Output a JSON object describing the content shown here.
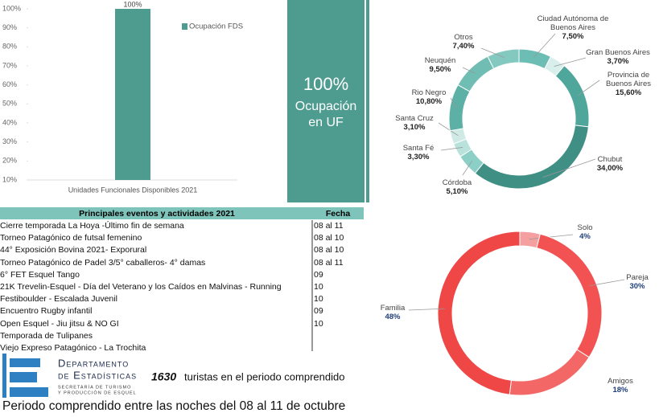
{
  "chart_data": [
    {
      "type": "bar",
      "categories": [
        "Unidades Funcionales Disponibles 2021"
      ],
      "series": [
        {
          "name": "Ocupación FDS",
          "color": "#4e9b8f",
          "values": [
            100
          ],
          "value_labels": [
            "100%"
          ]
        }
      ],
      "ylim": [
        10,
        100
      ],
      "yticks": [
        {
          "value": 10,
          "label": "10%"
        },
        {
          "value": 20,
          "label": "20%"
        },
        {
          "value": 30,
          "label": "30%"
        },
        {
          "value": 40,
          "label": "40%"
        },
        {
          "value": 50,
          "label": "50%"
        },
        {
          "value": 60,
          "label": "60%"
        },
        {
          "value": 70,
          "label": "70%"
        },
        {
          "value": 80,
          "label": "80%"
        },
        {
          "value": 90,
          "label": "90%"
        },
        {
          "value": 100,
          "label": "100%"
        }
      ],
      "grid": false,
      "legend": "top-right"
    },
    {
      "type": "donut",
      "categories": [
        "Ciudad Autónoma de Buenos Aires",
        "Gran Buenos Aires",
        "Provincia de Buenos Aires",
        "Chubut",
        "Córdoba",
        "Santa Fé",
        "Santa Cruz",
        "Rio Negro",
        "Neuquén",
        "Otros"
      ],
      "values": [
        7.5,
        3.7,
        15.6,
        34,
        5.1,
        3.3,
        3.1,
        10.8,
        9.5,
        7.4
      ],
      "value_labels": [
        "7,50%",
        "3,70%",
        "15,60%",
        "34,00%",
        "5,10%",
        "3,30%",
        "3,10%",
        "10,80%",
        "9,50%",
        "7,40%"
      ],
      "colors": [
        "#6cbdb3",
        "#d9efeb",
        "#4fa79c",
        "#3f8f85",
        "#8ccfc6",
        "#b9e2dc",
        "#cfe9e4",
        "#5cb0a6",
        "#6fbdb3",
        "#84c9c0"
      ]
    },
    {
      "type": "donut",
      "categories": [
        "Solo",
        "Pareja",
        "Amigos",
        "Familia"
      ],
      "values": [
        4,
        30,
        18,
        48
      ],
      "value_labels": [
        "4%",
        "30%",
        "18%",
        "48%"
      ],
      "colors": [
        "#f5a0a0",
        "#f25252",
        "#f36767",
        "#ef4646"
      ]
    }
  ],
  "kpi": {
    "value": "100%",
    "lines": [
      "Ocupación",
      "en UF"
    ]
  },
  "events_table": {
    "columns": [
      "Principales eventos y actividades 2021",
      "Fecha"
    ],
    "rows": [
      {
        "event": "Cierre temporada La Hoya -Último fin de semana",
        "date": "08 al 11"
      },
      {
        "event": "Torneo Patagónico de futsal femenino",
        "date": "08 al 10"
      },
      {
        "event": "44° Exposición Bovina 2021- Exporural",
        "date": "08 al 10"
      },
      {
        "event": "Torneo Patagónico de Padel 3/5° caballeros- 4° damas",
        "date": "08 al 11"
      },
      {
        "event": "6° FET Esquel Tango",
        "date": "09"
      },
      {
        "event": "21K Trevelin-Esquel - Día del Veterano y los Caídos en Malvinas - Running",
        "date": "10"
      },
      {
        "event": "Festiboulder - Escalada Juvenil",
        "date": "10"
      },
      {
        "event": "Encuentro Rugby infantil",
        "date": "09"
      },
      {
        "event": "Open Esquel - Jiu jitsu & NO GI",
        "date": "10"
      },
      {
        "event": "Temporada de Tulipanes"
      },
      {
        "event": "Viejo Expreso Patagónico - La Trochita"
      }
    ]
  },
  "logo": {
    "line1": "Departamento",
    "line2": "de Estadísticas",
    "line3": "Secretaría de Turismo",
    "line4": "y Producción de Esquel"
  },
  "summary": {
    "count": 1630,
    "text": "turistas en el periodo comprendido"
  },
  "footer": "Periodo comprendido entre las noches del 08 al 11 de octubre"
}
